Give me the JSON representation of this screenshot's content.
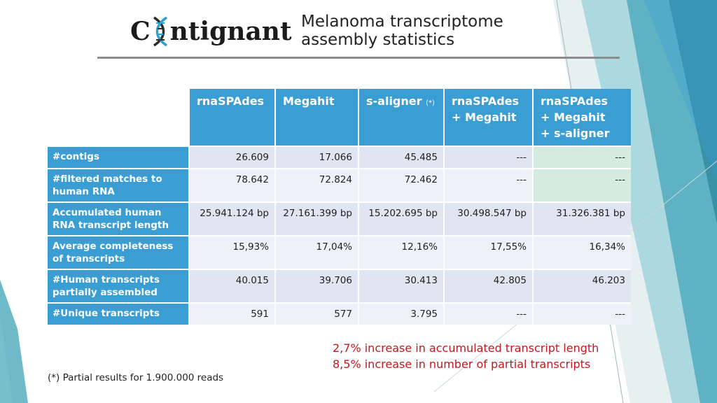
{
  "logo": {
    "prefix": "C",
    "suffix": "ntignant"
  },
  "title": {
    "line1": "Melanoma transcriptome",
    "line2": "assembly statistics"
  },
  "table": {
    "headers": [
      "rnaSPAdes",
      "Megahit",
      "s-aligner",
      "rnaSPAdes\n+ Megahit",
      "rnaSPAdes\n+ Megahit\n+ s-aligner"
    ],
    "header_note": "(*)",
    "rows": [
      {
        "label": "#contigs",
        "values": [
          "26.609",
          "17.066",
          "45.485",
          "---",
          "---"
        ]
      },
      {
        "label": "#filtered matches to human RNA",
        "values": [
          "78.642",
          "72.824",
          "72.462",
          "---",
          "---"
        ]
      },
      {
        "label": "Accumulated human RNA transcript length",
        "values": [
          "25.941.124 bp",
          "27.161.399 bp",
          "15.202.695 bp",
          "30.498.547 bp",
          "31.326.381 bp"
        ]
      },
      {
        "label": "Average completeness of transcripts",
        "values": [
          "15,93%",
          "17,04%",
          "12,16%",
          "17,55%",
          "16,34%"
        ]
      },
      {
        "label": "#Human transcripts partially assembled",
        "values": [
          "40.015",
          "39.706",
          "30.413",
          "42.805",
          "46.203"
        ]
      },
      {
        "label": "#Unique transcripts",
        "values": [
          "591",
          "577",
          "3.795",
          "---",
          "---"
        ]
      }
    ]
  },
  "notes": {
    "line1": "2,7% increase in accumulated transcript length",
    "line2": "8,5% increase in number of partial transcripts"
  },
  "footnote": "(*) Partial results for 1.900.000 reads",
  "colors": {
    "header": "#3a9ed3",
    "row_odd": "#dfe5f1",
    "row_even": "#eef1f8",
    "highlight": "#d3ebe0",
    "note": "#c0191e",
    "deco_teal": "#3aa6b8"
  }
}
